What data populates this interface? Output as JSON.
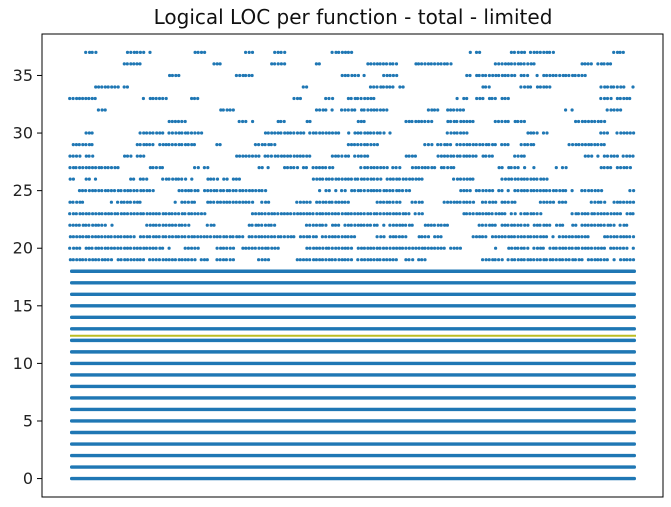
{
  "chart_data": {
    "type": "scatter",
    "title": "Logical LOC per function - total - limited",
    "xlabel": "",
    "ylabel": "",
    "xticks_visible": false,
    "ylim": [
      -1.6,
      38.6
    ],
    "y_ticks": [
      0,
      5,
      10,
      15,
      20,
      25,
      30,
      35
    ],
    "series": [
      {
        "color": "#1f77b4",
        "y_levels": [
          0,
          1,
          2,
          3,
          4,
          5,
          6,
          7,
          8,
          9,
          10,
          11,
          12,
          13,
          14,
          15,
          16,
          17,
          18,
          19,
          20,
          21,
          22,
          23,
          24,
          25,
          26,
          27,
          28,
          29,
          30,
          31,
          32,
          33,
          34,
          35,
          36,
          37
        ]
      }
    ],
    "reference_lines": [
      {
        "y": 12.4,
        "color": "#bcbd22"
      }
    ],
    "colors": {
      "points": "#1f77b4",
      "reference_line": "#bcbd22",
      "axes": "#000000"
    }
  }
}
